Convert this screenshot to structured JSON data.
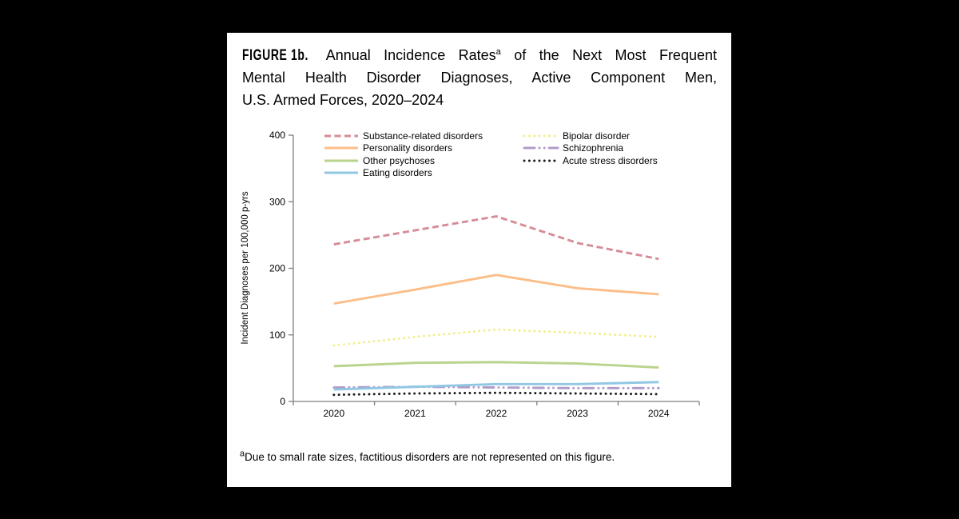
{
  "panel": {
    "title": {
      "figure_label": "FIGURE 1b.",
      "line1_pre_sup": "Annual Incidence Rates",
      "sup": "a",
      "line1_post_sup": "of the Next Most Frequent",
      "line2": "Mental Health Disorder Diagnoses, Active Component Men,",
      "line3": "U.S. Armed Forces, 2020–2024"
    },
    "footnote": {
      "sup": "a",
      "text": "Due to small rate sizes, factitious disorders are not represented on this figure."
    }
  },
  "chart_data": {
    "type": "line",
    "title": "",
    "xlabel": "",
    "ylabel": "Incident Diagnoses per 100,000 p-yrs",
    "categories": [
      "2020",
      "2021",
      "2022",
      "2023",
      "2024"
    ],
    "ylim": [
      0,
      400
    ],
    "yticks": [
      0,
      100,
      200,
      300,
      400
    ],
    "grid": false,
    "legend_position": "top",
    "axis_color": "#7f7f7f",
    "draw_order": [
      0,
      1,
      4,
      2,
      5,
      3,
      6
    ],
    "series": [
      {
        "name": "Substance-related disorders",
        "color": "#d68c96",
        "style": "dashed",
        "legend_column": 1,
        "values": [
          236,
          257,
          278,
          238,
          214
        ]
      },
      {
        "name": "Personality disorders",
        "color": "#fcbe88",
        "style": "solid",
        "legend_column": 1,
        "values": [
          147,
          168,
          190,
          170,
          161
        ]
      },
      {
        "name": "Other psychoses",
        "color": "#bad38c",
        "style": "solid",
        "legend_column": 1,
        "values": [
          53,
          58,
          59,
          57,
          51
        ]
      },
      {
        "name": "Eating disorders",
        "color": "#90c7e3",
        "style": "solid",
        "legend_column": 1,
        "values": [
          18,
          22,
          26,
          26,
          29
        ]
      },
      {
        "name": "Bipolar disorder",
        "color": "#f2ee8a",
        "style": "dotted",
        "legend_column": 2,
        "values": [
          84,
          97,
          108,
          103,
          97
        ]
      },
      {
        "name": "Schizophrenia",
        "color": "#b19cc9",
        "style": "dash-dot-dot",
        "legend_column": 2,
        "values": [
          21,
          22,
          21,
          20,
          20
        ]
      },
      {
        "name": "Acute stress disorders",
        "color": "#1a1a1a",
        "style": "dotted",
        "legend_column": 2,
        "values": [
          10,
          12,
          13,
          12,
          11
        ]
      }
    ]
  }
}
